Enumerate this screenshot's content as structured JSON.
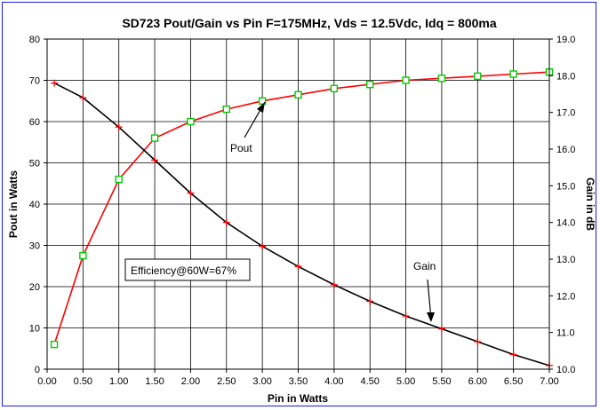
{
  "chart_data": {
    "type": "line",
    "title": "SD723 Pout/Gain vs Pin F=175MHz, Vds = 12.5Vdc, Idq = 800ma",
    "xlabel": "Pin in Watts",
    "ylabel": "Pout in Watts",
    "y2label": "Gain in dB",
    "xlim": [
      0,
      7
    ],
    "ylim": [
      0,
      80
    ],
    "y2lim": [
      10,
      19
    ],
    "x_ticks": [
      "0.00",
      "0.50",
      "1.00",
      "1.50",
      "2.00",
      "2.50",
      "3.00",
      "3.50",
      "4.00",
      "4.50",
      "5.00",
      "5.50",
      "6.00",
      "6.50",
      "7.00"
    ],
    "y_ticks": [
      "0",
      "10",
      "20",
      "30",
      "40",
      "50",
      "60",
      "70",
      "80"
    ],
    "y2_ticks": [
      "10.0",
      "11.0",
      "12.0",
      "13.0",
      "14.0",
      "15.0",
      "16.0",
      "17.0",
      "18.0",
      "19.0"
    ],
    "grid": true,
    "series": [
      {
        "name": "Pout",
        "axis": "left",
        "color": "#ff0000",
        "marker": "square",
        "marker_color": "#00cc00",
        "x": [
          0.1,
          0.5,
          1.0,
          1.5,
          2.0,
          2.5,
          3.0,
          3.5,
          4.0,
          4.5,
          5.0,
          5.5,
          6.0,
          6.5,
          7.0
        ],
        "values": [
          6,
          27.5,
          46,
          56,
          60,
          63,
          65,
          66.5,
          68,
          69,
          70,
          70.5,
          71,
          71.5,
          72
        ]
      },
      {
        "name": "Gain",
        "axis": "right",
        "color": "#000000",
        "marker": "plus",
        "marker_color": "#ff0000",
        "x": [
          0.1,
          0.5,
          1.0,
          1.5,
          2.0,
          2.5,
          3.0,
          3.5,
          4.0,
          4.5,
          5.0,
          5.5,
          6.0,
          6.5,
          7.0
        ],
        "values": [
          17.8,
          17.4,
          16.6,
          15.7,
          14.8,
          14.0,
          13.35,
          12.8,
          12.3,
          11.85,
          11.45,
          11.1,
          10.75,
          10.4,
          10.1
        ]
      }
    ],
    "annotations": [
      {
        "text": "Pout",
        "arrow_to": {
          "x": 3.0,
          "y": 65,
          "axis": "left"
        }
      },
      {
        "text": "Gain",
        "arrow_to": {
          "x": 5.4,
          "y": 11.2,
          "axis": "right"
        }
      },
      {
        "text": "Efficiency@60W=67%",
        "boxed": true
      }
    ]
  }
}
